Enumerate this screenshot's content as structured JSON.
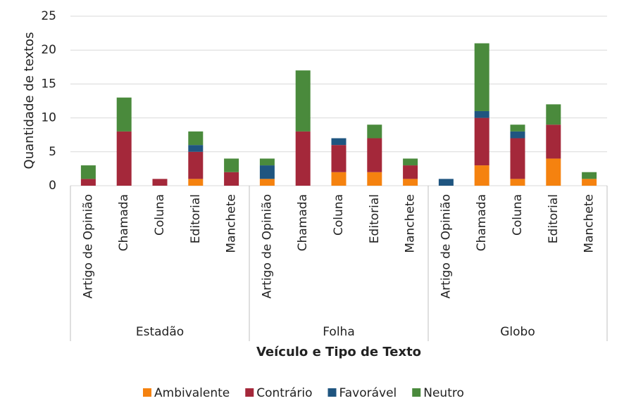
{
  "chart_data": {
    "type": "stacked_bar",
    "x_label": "Veículo e Tipo de Texto",
    "y_label": "Quantidade de textos",
    "groups": [
      "Estadão",
      "Folha",
      "Globo"
    ],
    "categories": [
      "Artigo de Opinião",
      "Chamada",
      "Coluna",
      "Editorial",
      "Manchete",
      "Artigo de Opinião",
      "Chamada",
      "Coluna",
      "Editorial",
      "Manchete",
      "Artigo de Opinião",
      "Chamada",
      "Coluna",
      "Editorial",
      "Manchete"
    ],
    "series": [
      {
        "name": "Ambivalente",
        "color": "#f5820f",
        "values": [
          0,
          0,
          0,
          1,
          0,
          1,
          0,
          2,
          2,
          1,
          0,
          3,
          1,
          4,
          1
        ]
      },
      {
        "name": "Contrário",
        "color": "#a4283a",
        "values": [
          1,
          8,
          1,
          4,
          2,
          0,
          8,
          4,
          5,
          2,
          0,
          7,
          6,
          5,
          0
        ]
      },
      {
        "name": "Favorável",
        "color": "#1f5580",
        "values": [
          0,
          0,
          0,
          1,
          0,
          2,
          0,
          1,
          0,
          0,
          1,
          1,
          1,
          0,
          0
        ]
      },
      {
        "name": "Neutro",
        "color": "#4a8a3c",
        "values": [
          2,
          5,
          0,
          2,
          2,
          1,
          9,
          0,
          2,
          1,
          0,
          10,
          1,
          3,
          1
        ]
      }
    ],
    "ylim": [
      0,
      25
    ],
    "yticks": [
      0,
      5,
      10,
      15,
      20,
      25
    ],
    "grid": true,
    "legend": "bottom"
  }
}
